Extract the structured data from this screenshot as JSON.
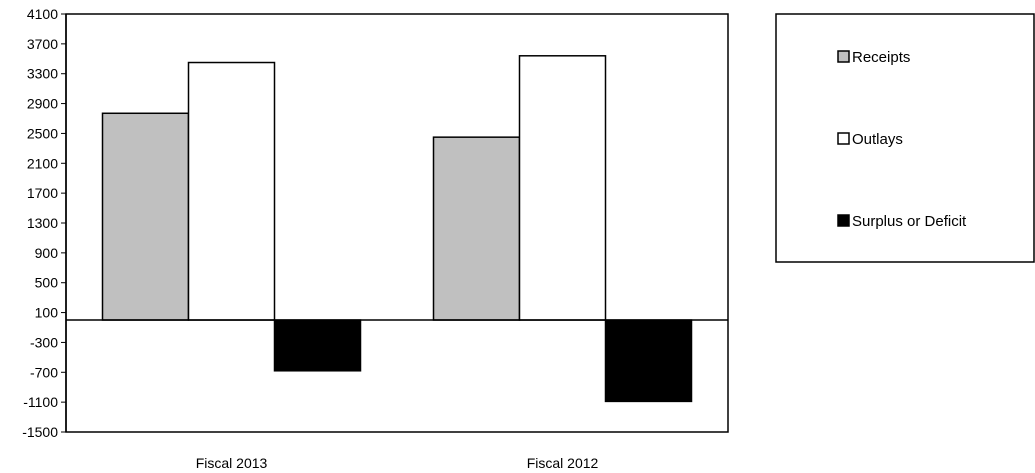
{
  "chart_data": {
    "type": "bar",
    "title": "",
    "xlabel": "",
    "ylabel": "",
    "categories": [
      "Fiscal 2013",
      "Fiscal 2012"
    ],
    "series": [
      {
        "name": "Receipts",
        "values": [
          2770,
          2450
        ],
        "color": "#c0c0c0"
      },
      {
        "name": "Outlays",
        "values": [
          3450,
          3540
        ],
        "color": "#ffffff"
      },
      {
        "name": "Surplus or Deficit",
        "values": [
          -680,
          -1090
        ],
        "color": "#000000"
      }
    ],
    "ylim": [
      -1500,
      4100
    ],
    "yticks": [
      4100,
      3700,
      3300,
      2900,
      2500,
      2100,
      1700,
      1300,
      900,
      500,
      100,
      -300,
      -700,
      -1100,
      -1500
    ],
    "grid": false,
    "legend_position": "right"
  }
}
